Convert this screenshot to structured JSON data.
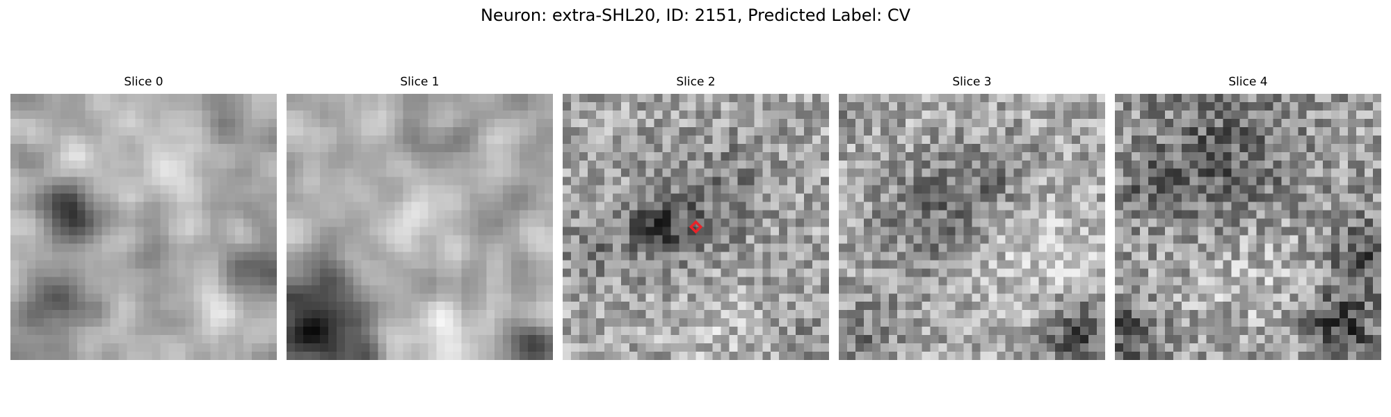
{
  "figure": {
    "title": "Neuron: extra-SHL20, ID: 2151, Predicted Label: CV"
  },
  "panels": [
    {
      "title": "Slice 0",
      "texture": {
        "seed": 11,
        "base": 175,
        "noise": 45,
        "smooth": 2,
        "blobs": [
          [
            0.22,
            0.45,
            0.07,
            -130
          ],
          [
            0.95,
            0.65,
            0.1,
            -90
          ],
          [
            0.15,
            0.75,
            0.12,
            -50
          ],
          [
            0.5,
            0.6,
            0.12,
            -25
          ],
          [
            0.45,
            0.15,
            0.15,
            20
          ],
          [
            0.85,
            0.8,
            0.1,
            30
          ],
          [
            0.05,
            0.25,
            0.06,
            -50
          ]
        ]
      }
    },
    {
      "title": "Slice 1",
      "texture": {
        "seed": 23,
        "base": 175,
        "noise": 45,
        "smooth": 2,
        "blobs": [
          [
            0.08,
            0.82,
            0.14,
            -135
          ],
          [
            0.15,
            0.95,
            0.1,
            -60
          ],
          [
            0.95,
            0.95,
            0.07,
            -110
          ],
          [
            0.55,
            0.95,
            0.12,
            45
          ],
          [
            0.45,
            0.35,
            0.15,
            25
          ],
          [
            0.6,
            0.2,
            0.1,
            -30
          ]
        ]
      }
    },
    {
      "title": "Slice 2",
      "texture": {
        "seed": 37,
        "base": 165,
        "noise": 55,
        "smooth": 0,
        "blobs": [
          [
            0.45,
            0.5,
            0.15,
            -45
          ],
          [
            0.35,
            0.5,
            0.08,
            -60
          ],
          [
            0.65,
            0.3,
            0.12,
            -30
          ],
          [
            0.1,
            0.6,
            0.08,
            -40
          ],
          [
            0.55,
            0.85,
            0.15,
            25
          ],
          [
            0.9,
            0.9,
            0.1,
            -20
          ]
        ]
      },
      "marker": {
        "x": 0.5,
        "y": 0.5,
        "color": "#e8242a"
      }
    },
    {
      "title": "Slice 3",
      "texture": {
        "seed": 51,
        "base": 170,
        "noise": 55,
        "smooth": 0,
        "blobs": [
          [
            0.35,
            0.45,
            0.15,
            -55
          ],
          [
            0.6,
            0.3,
            0.1,
            -40
          ],
          [
            0.9,
            0.9,
            0.08,
            -100
          ],
          [
            0.1,
            0.9,
            0.1,
            -45
          ],
          [
            0.75,
            0.6,
            0.15,
            30
          ],
          [
            0.05,
            0.05,
            0.05,
            -30
          ]
        ]
      }
    },
    {
      "title": "Slice 4",
      "texture": {
        "seed": 67,
        "base": 160,
        "noise": 60,
        "smooth": 0,
        "blobs": [
          [
            0.4,
            0.25,
            0.2,
            -65
          ],
          [
            0.95,
            0.6,
            0.1,
            -80
          ],
          [
            0.85,
            0.88,
            0.1,
            -90
          ],
          [
            0.05,
            0.9,
            0.08,
            -80
          ],
          [
            0.5,
            0.65,
            0.18,
            30
          ],
          [
            0.1,
            0.35,
            0.08,
            -30
          ]
        ]
      }
    }
  ]
}
